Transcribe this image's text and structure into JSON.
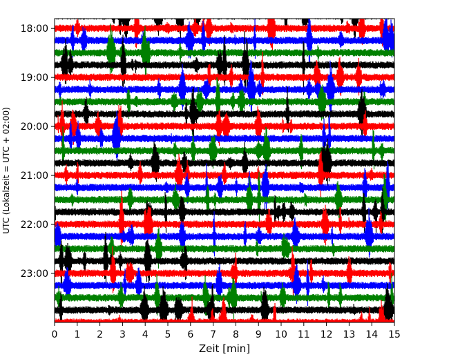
{
  "chart_data": {
    "type": "line",
    "title": "",
    "xlabel": "Zeit  [min]",
    "ylabel": "UTC (Lokalzeit = UTC + 02:00)",
    "xlim": [
      0,
      15
    ],
    "x_ticks": [
      0,
      1,
      2,
      3,
      4,
      5,
      6,
      7,
      8,
      9,
      10,
      11,
      12,
      13,
      14,
      15
    ],
    "x_tick_labels": [
      "0",
      "1",
      "2",
      "3",
      "4",
      "5",
      "6",
      "7",
      "8",
      "9",
      "10",
      "11",
      "12",
      "13",
      "14",
      "15"
    ],
    "y_tick_labels": [
      "18:00",
      "19:00",
      "20:00",
      "21:00",
      "22:00",
      "23:00"
    ],
    "y_ticks_hours_utc": [
      18,
      19,
      20,
      21,
      22,
      23
    ],
    "ylim_hours_utc": [
      17.8,
      24.0
    ],
    "y_axis_inverted": true,
    "traces_start_time": "17:45",
    "trace_interval_min": 15,
    "trace_color_cycle": [
      "#000000",
      "#ff0000",
      "#0000ff",
      "#008000"
    ],
    "grid": false,
    "legend": "none",
    "note_data": "Seismogram-style helicorder: each row is a 15-minute trace of continuous noisy signal with spikes."
  }
}
